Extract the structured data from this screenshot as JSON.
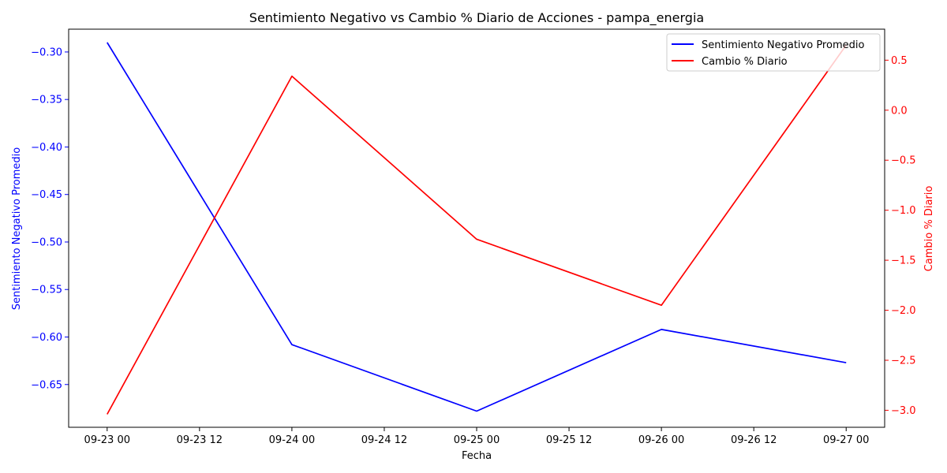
{
  "chart_data": {
    "type": "line",
    "title": "Sentimiento Negativo vs Cambio % Diario de Acciones - pampa_energia",
    "xlabel": "Fecha",
    "ylabel_left": "Sentimiento Negativo Promedio",
    "ylabel_right": "Cambio % Diario",
    "x_ticks": [
      "09-23 00",
      "09-23 12",
      "09-24 00",
      "09-24 12",
      "09-25 00",
      "09-25 12",
      "09-26 00",
      "09-26 12",
      "09-27 00"
    ],
    "x_dates": [
      "2023-09-23",
      "2023-09-24",
      "2023-09-25",
      "2023-09-26",
      "2023-09-27"
    ],
    "y_left_ticks": [
      "−0.30",
      "−0.35",
      "−0.40",
      "−0.45",
      "−0.50",
      "−0.55",
      "−0.60",
      "−0.65"
    ],
    "y_right_ticks": [
      "0.5",
      "0.0",
      "−0.5",
      "−1.0",
      "−1.5",
      "−2.0",
      "−2.5",
      "−3.0"
    ],
    "ylim_left": [
      -0.695,
      -0.276
    ],
    "ylim_right": [
      -3.17,
      0.81
    ],
    "xlim": [
      "2023-09-22 19:00",
      "2023-09-27 05:00"
    ],
    "grid": false,
    "legend_position": "top-right",
    "series": [
      {
        "name": "Sentimiento Negativo Promedio",
        "axis": "left",
        "color": "#0000ff",
        "values": [
          -0.29,
          -0.608,
          -0.678,
          -0.592,
          -0.627
        ]
      },
      {
        "name": "Cambio % Diario",
        "axis": "right",
        "color": "#ff0000",
        "values": [
          -3.04,
          0.34,
          -1.29,
          -1.95,
          0.65
        ]
      }
    ]
  }
}
